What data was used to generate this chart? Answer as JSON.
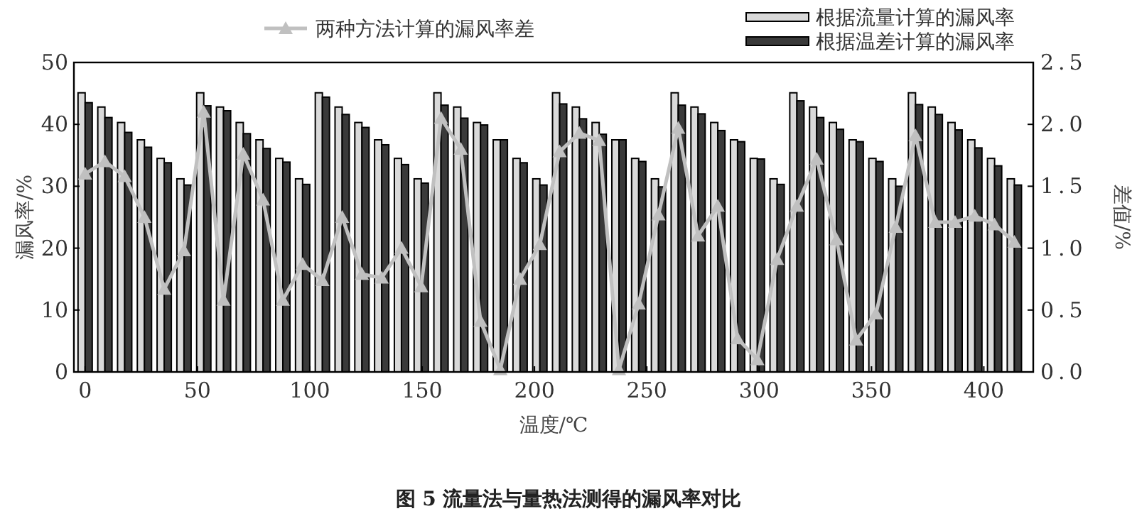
{
  "chart_data": {
    "type": "bar",
    "xlabel": "温度/℃",
    "ylabel": "漏风率/%",
    "y2label": "差值/%",
    "annotations": [
      "图 5  流量法与量热法测得的漏风率对比"
    ],
    "x": [
      0,
      8.8,
      17.6,
      26.4,
      35.2,
      44,
      52.8,
      61.6,
      70.4,
      79.2,
      88,
      96.8,
      105.6,
      114.4,
      123.2,
      132,
      140.8,
      149.6,
      158.4,
      167.2,
      176,
      184.8,
      193.6,
      202.4,
      211.2,
      220,
      228.8,
      237.6,
      246.4,
      255.2,
      264,
      272.8,
      281.6,
      290.4,
      299.2,
      308,
      316.8,
      325.6,
      334.4,
      343.2,
      352,
      360.8,
      369.6,
      378.4,
      387.2,
      396,
      404.8,
      413.6
    ],
    "xlim": [
      -5,
      422
    ],
    "xticks": [
      0,
      50,
      100,
      150,
      200,
      250,
      300,
      350,
      400
    ],
    "ylim": [
      0,
      50
    ],
    "yticks": [
      0,
      10,
      20,
      30,
      40,
      50
    ],
    "y2lim": [
      0,
      2.5
    ],
    "y2ticks": [
      {
        "value": 0,
        "label": "0.0"
      },
      {
        "value": 0.5,
        "label": "0.5"
      },
      {
        "value": 1,
        "label": "1.0"
      },
      {
        "value": 1.5,
        "label": "1.5"
      },
      {
        "value": 2,
        "label": "2.0"
      },
      {
        "value": 2.5,
        "label": "2.5"
      }
    ],
    "legend": "top right",
    "marker": "triangle",
    "grid": false,
    "series": [
      {
        "name": "根据流量计算的漏风率",
        "color": "#d9d9d9",
        "values": [
          45.1,
          42.8,
          40.3,
          37.5,
          34.5,
          31.2,
          45.1,
          42.8,
          40.3,
          37.5,
          34.5,
          31.2,
          45.1,
          42.8,
          40.3,
          37.5,
          34.5,
          31.2,
          45.1,
          42.8,
          40.3,
          37.5,
          34.5,
          31.2,
          45.1,
          42.8,
          40.3,
          37.5,
          34.5,
          31.2,
          45.1,
          42.8,
          40.3,
          37.5,
          34.5,
          31.2,
          45.1,
          42.8,
          40.3,
          37.5,
          34.5,
          31.2,
          45.1,
          42.8,
          40.3,
          37.5,
          34.5,
          31.2
        ]
      },
      {
        "name": "根据温差计算的漏风率",
        "color": "#3a3a3a",
        "values": [
          43.5,
          41.1,
          38.7,
          36.3,
          33.8,
          30.2,
          43.0,
          42.2,
          38.5,
          36.1,
          33.9,
          30.3,
          44.4,
          41.6,
          39.5,
          36.7,
          33.5,
          30.5,
          43.1,
          41.0,
          39.9,
          37.5,
          33.8,
          30.2,
          43.3,
          40.9,
          38.4,
          37.5,
          34.0,
          29.9,
          43.1,
          41.7,
          39.0,
          37.2,
          34.4,
          30.3,
          43.8,
          41.1,
          39.2,
          37.2,
          34.0,
          30.0,
          43.2,
          41.6,
          39.1,
          36.2,
          33.3,
          30.2
        ]
      },
      {
        "name": "两种方法计算的漏风率差",
        "type": "line",
        "axis": "y2",
        "color": "#c0c0c0",
        "values": [
          1.6,
          1.7,
          1.58,
          1.25,
          0.67,
          0.98,
          2.1,
          0.58,
          1.76,
          1.39,
          0.58,
          0.87,
          0.74,
          1.25,
          0.79,
          0.76,
          1.0,
          0.69,
          2.05,
          1.8,
          0.41,
          0.02,
          0.75,
          1.03,
          1.78,
          1.93,
          1.87,
          0.02,
          0.55,
          1.27,
          1.97,
          1.1,
          1.34,
          0.27,
          0.1,
          0.91,
          1.34,
          1.72,
          1.07,
          0.26,
          0.47,
          1.17,
          1.91,
          1.21,
          1.21,
          1.26,
          1.19,
          1.05
        ]
      }
    ]
  }
}
